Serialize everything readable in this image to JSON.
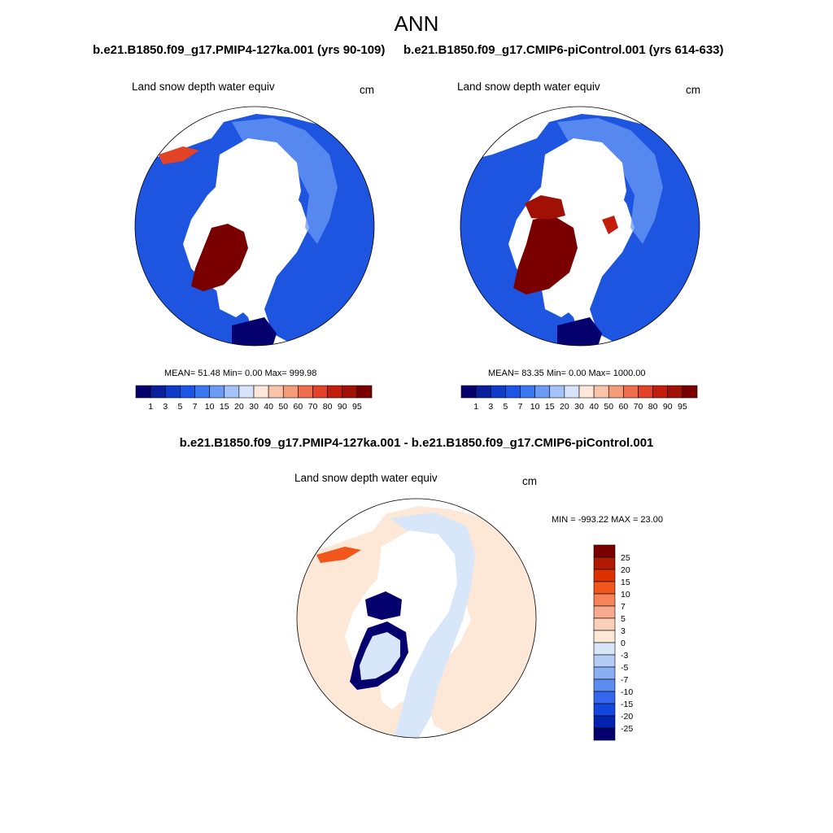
{
  "main_title": "ANN",
  "panels": [
    {
      "run": "b.e21.B1850.f09_g17.PMIP4-127ka.001 (yrs 90-109)",
      "variable": "Land snow depth water equiv",
      "units": "cm",
      "stats": "MEAN=  51.48  Min=   0.00  Max= 999.98"
    },
    {
      "run": "b.e21.B1850.f09_g17.CMIP6-piControl.001 (yrs 614-633)",
      "variable": "Land snow depth water equiv",
      "units": "cm",
      "stats": "MEAN=  83.35  Min=   0.00  Max= 1000.00"
    }
  ],
  "difference": {
    "title": "b.e21.B1850.f09_g17.PMIP4-127ka.001 - b.e21.B1850.f09_g17.CMIP6-piControl.001",
    "variable": "Land snow depth water equiv",
    "units": "cm",
    "stats": "MIN = -993.22 MAX =  23.00"
  },
  "chart_data": [
    {
      "type": "heatmap",
      "projection": "north-polar-stereographic",
      "title": "b.e21.B1850.f09_g17.PMIP4-127ka.001 (yrs 90-109)",
      "variable": "Land snow depth water equiv",
      "units": "cm",
      "mean": 51.48,
      "min": 0.0,
      "max": 999.98,
      "colorbar_levels": [
        "1",
        "3",
        "5",
        "7",
        "10",
        "15",
        "20",
        "30",
        "40",
        "50",
        "60",
        "70",
        "80",
        "90",
        "95"
      ],
      "colorbar_colors": [
        "#04006e",
        "#0a1f9e",
        "#0f3bc8",
        "#1a55e6",
        "#3a78f2",
        "#6b9af5",
        "#a5c2f8",
        "#d6e4fb",
        "#fde7da",
        "#f9c3a8",
        "#f49b79",
        "#ee6e4c",
        "#e24226",
        "#c21e0b",
        "#a01005",
        "#7a0000"
      ],
      "colorbar_orientation": "horizontal"
    },
    {
      "type": "heatmap",
      "projection": "north-polar-stereographic",
      "title": "b.e21.B1850.f09_g17.CMIP6-piControl.001 (yrs 614-633)",
      "variable": "Land snow depth water equiv",
      "units": "cm",
      "mean": 83.35,
      "min": 0.0,
      "max": 1000.0,
      "colorbar_levels": [
        "1",
        "3",
        "5",
        "7",
        "10",
        "15",
        "20",
        "30",
        "40",
        "50",
        "60",
        "70",
        "80",
        "90",
        "95"
      ],
      "colorbar_colors": [
        "#04006e",
        "#0a1f9e",
        "#0f3bc8",
        "#1a55e6",
        "#3a78f2",
        "#6b9af5",
        "#a5c2f8",
        "#d6e4fb",
        "#fde7da",
        "#f9c3a8",
        "#f49b79",
        "#ee6e4c",
        "#e24226",
        "#c21e0b",
        "#a01005",
        "#7a0000"
      ],
      "colorbar_orientation": "horizontal"
    },
    {
      "type": "heatmap",
      "projection": "north-polar-stereographic",
      "title": "b.e21.B1850.f09_g17.PMIP4-127ka.001 - b.e21.B1850.f09_g17.CMIP6-piControl.001",
      "variable": "Land snow depth water equiv",
      "units": "cm",
      "min": -993.22,
      "max": 23.0,
      "colorbar_levels": [
        "25",
        "20",
        "15",
        "10",
        "7",
        "5",
        "3",
        "0",
        "-3",
        "-5",
        "-7",
        "-10",
        "-15",
        "-20",
        "-25"
      ],
      "colorbar_colors": [
        "#7a0000",
        "#b01a00",
        "#dc3200",
        "#f2561c",
        "#f58459",
        "#f7ab8c",
        "#fbd0b8",
        "#fde8d8",
        "#d8e6fa",
        "#b4cdf7",
        "#8aaff3",
        "#5d8df0",
        "#3567ec",
        "#1446dd",
        "#0422b0",
        "#04006e"
      ],
      "colorbar_orientation": "vertical"
    }
  ]
}
